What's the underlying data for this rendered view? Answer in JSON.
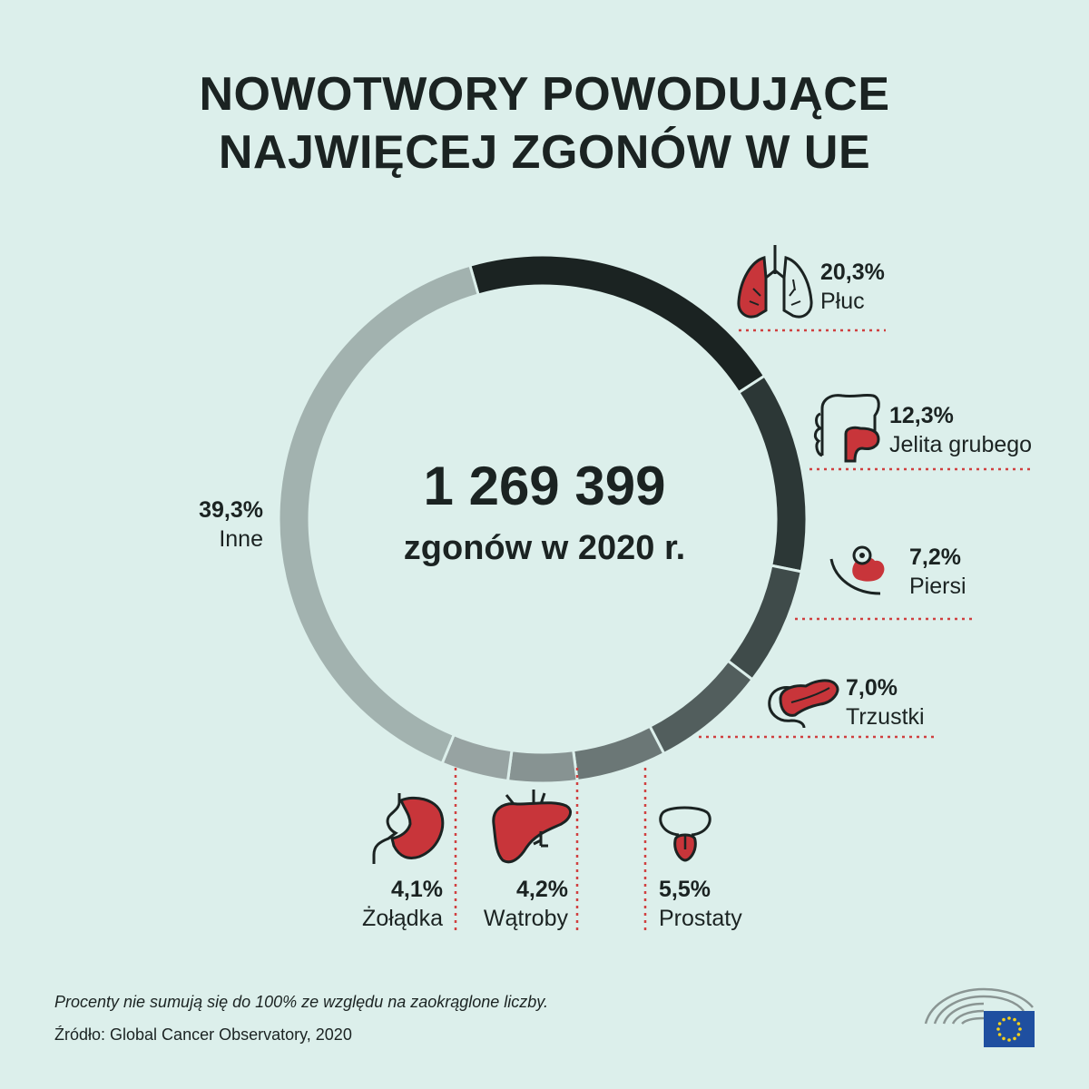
{
  "title": {
    "line1": "NOWOTWORY POWODUJĄCE",
    "line2": "NAJWIĘCEJ ZGONÓW W UE"
  },
  "center": {
    "total": "1 269 399",
    "caption": "zgonów w 2020 r."
  },
  "chart_data": {
    "type": "pie",
    "categories": [
      "Płuc",
      "Jelita grubego",
      "Piersi",
      "Trzustki",
      "Prostaty",
      "Wątroby",
      "Żołądka",
      "Inne"
    ],
    "values": [
      20.3,
      12.3,
      7.2,
      7.0,
      5.5,
      4.2,
      4.1,
      39.3
    ],
    "value_labels": [
      "20,3%",
      "12,3%",
      "7,2%",
      "7,0%",
      "5,5%",
      "4,2%",
      "4,1%",
      "39,3%"
    ],
    "colors": [
      "#1b2322",
      "#2c3736",
      "#3f4b4a",
      "#525e5d",
      "#6b7776",
      "#879392",
      "#97a3a2",
      "#a2b2af"
    ],
    "style": "donut"
  },
  "labels": {
    "lung": {
      "pct": "20,3%",
      "name": "Płuc",
      "icon": "lungs-icon"
    },
    "colon": {
      "pct": "12,3%",
      "name": "Jelita grubego",
      "icon": "colon-icon"
    },
    "breast": {
      "pct": "7,2%",
      "name": "Piersi",
      "icon": "breast-icon"
    },
    "pancreas": {
      "pct": "7,0%",
      "name": "Trzustki",
      "icon": "pancreas-icon"
    },
    "prostate": {
      "pct": "5,5%",
      "name": "Prostaty",
      "icon": "prostate-icon"
    },
    "liver": {
      "pct": "4,2%",
      "name": "Wątroby",
      "icon": "liver-icon"
    },
    "stomach": {
      "pct": "4,1%",
      "name": "Żołądka",
      "icon": "stomach-icon"
    },
    "other": {
      "pct": "39,3%",
      "name": "Inne"
    }
  },
  "footer": {
    "note": "Procenty nie sumują się do 100% ze względu na zaokrąglone liczby.",
    "source": "Źródło: Global Cancer Observatory, 2020"
  },
  "colors": {
    "background": "#dcefeb",
    "accent_red": "#c8353a",
    "dotted_line": "#d04040",
    "eu_blue": "#1f4fa0"
  }
}
